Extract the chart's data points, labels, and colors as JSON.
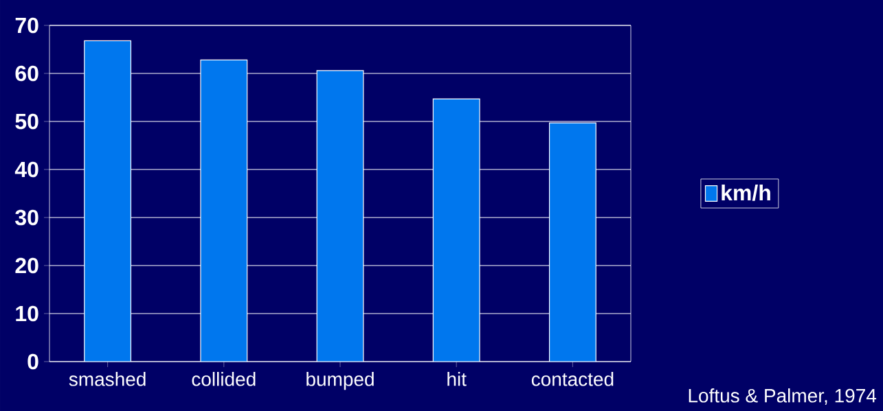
{
  "chart_data": {
    "type": "bar",
    "categories": [
      "smashed",
      "collided",
      "bumped",
      "hit",
      "contacted"
    ],
    "series": [
      {
        "name": "km/h",
        "color": "#0077ee",
        "values": [
          66.8,
          62.8,
          60.6,
          54.7,
          49.7
        ]
      }
    ],
    "ylim": [
      0,
      70
    ],
    "yticks": [
      0,
      10,
      20,
      30,
      40,
      50,
      60,
      70
    ],
    "grid": "y",
    "legend": "right",
    "annotations": [
      "Loftus & Palmer, 1974"
    ]
  }
}
